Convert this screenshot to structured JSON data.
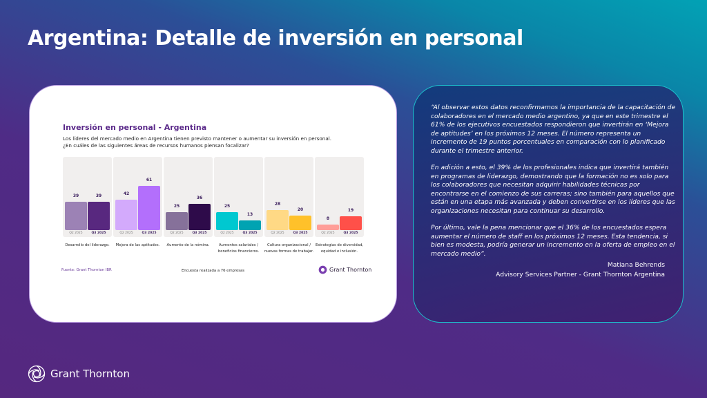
{
  "slide": {
    "title": "Argentina: Detalle de inversión en personal"
  },
  "card": {
    "source": "Fuente: Grant Thornton IBR",
    "survey_note": "Encuesta realizada a 76 empresas",
    "logo_text": "Grant Thornton"
  },
  "chart_data": {
    "type": "bar",
    "title": "Inversión en personal - Argentina",
    "subtitle": [
      "Los líderes del mercado medio en Argentina tienen previsto mantener o aumentar su inversión en personal.",
      "¿En cuáles de las siguientes áreas de recursos humanos piensan focalizar?"
    ],
    "categories": [
      "Desarrollo del liderazgo.",
      "Mejora de las aptitudes.",
      "Aumento de la nómina.",
      "Aumentos salariales / beneficios financieros.",
      "Cultura organizacional / nuevas formas de trabajar.",
      "Estrategias de diversidad, equidad e inclusión."
    ],
    "series": [
      {
        "name": "Q2 2025",
        "values": [
          39,
          42,
          25,
          25,
          28,
          8
        ]
      },
      {
        "name": "Q3 2025",
        "values": [
          39,
          61,
          36,
          13,
          20,
          19
        ]
      }
    ],
    "colors": [
      [
        "#9c82b5",
        "#58287f"
      ],
      [
        "#d3aafc",
        "#b36ffc"
      ],
      [
        "#86719a",
        "#2e0b4a"
      ],
      [
        "#00c8d0",
        "#00a3b2"
      ],
      [
        "#ffd985",
        "#ffc12a"
      ],
      [
        "#ff9e98",
        "#ff5049"
      ]
    ],
    "ylim": [
      0,
      100
    ]
  },
  "quote": {
    "paragraphs": [
      "“Al observar estos datos reconfirmamos la importancia de la capacitación de colaboradores en el mercado medio argentino, ya que en este trimestre el 61% de los ejecutivos encuestados respondieron que invertirán en ‘Mejora de aptitudes’ en los próximos 12 meses. El número representa un incremento de 19 puntos porcentuales en comparación con lo planificado durante el trimestre anterior.",
      "En adición a esto, el 39% de los profesionales indica que invertirá también en programas de liderazgo, demostrando que la formación no es solo para los colaboradores que necesitan adquirir habilidades técnicas por encontrarse en el comienzo de sus carreras; sino también para aquellos que están en una etapa más avanzada y deben convertirse en los líderes que las organizaciones necesitan para continuar su desarrollo.",
      "Por último, vale la pena mencionar que el 36% de los encuestados espera aumentar el número de staff en los próximos 12 meses. Esta tendencia, si bien es modesta, podría generar un incremento en la oferta de empleo en el mercado medio”."
    ],
    "author": "Matiana Behrends",
    "role": "Advisory Services Partner - Grant Thornton Argentina"
  },
  "footer": {
    "logo_text": "Grant Thornton"
  }
}
